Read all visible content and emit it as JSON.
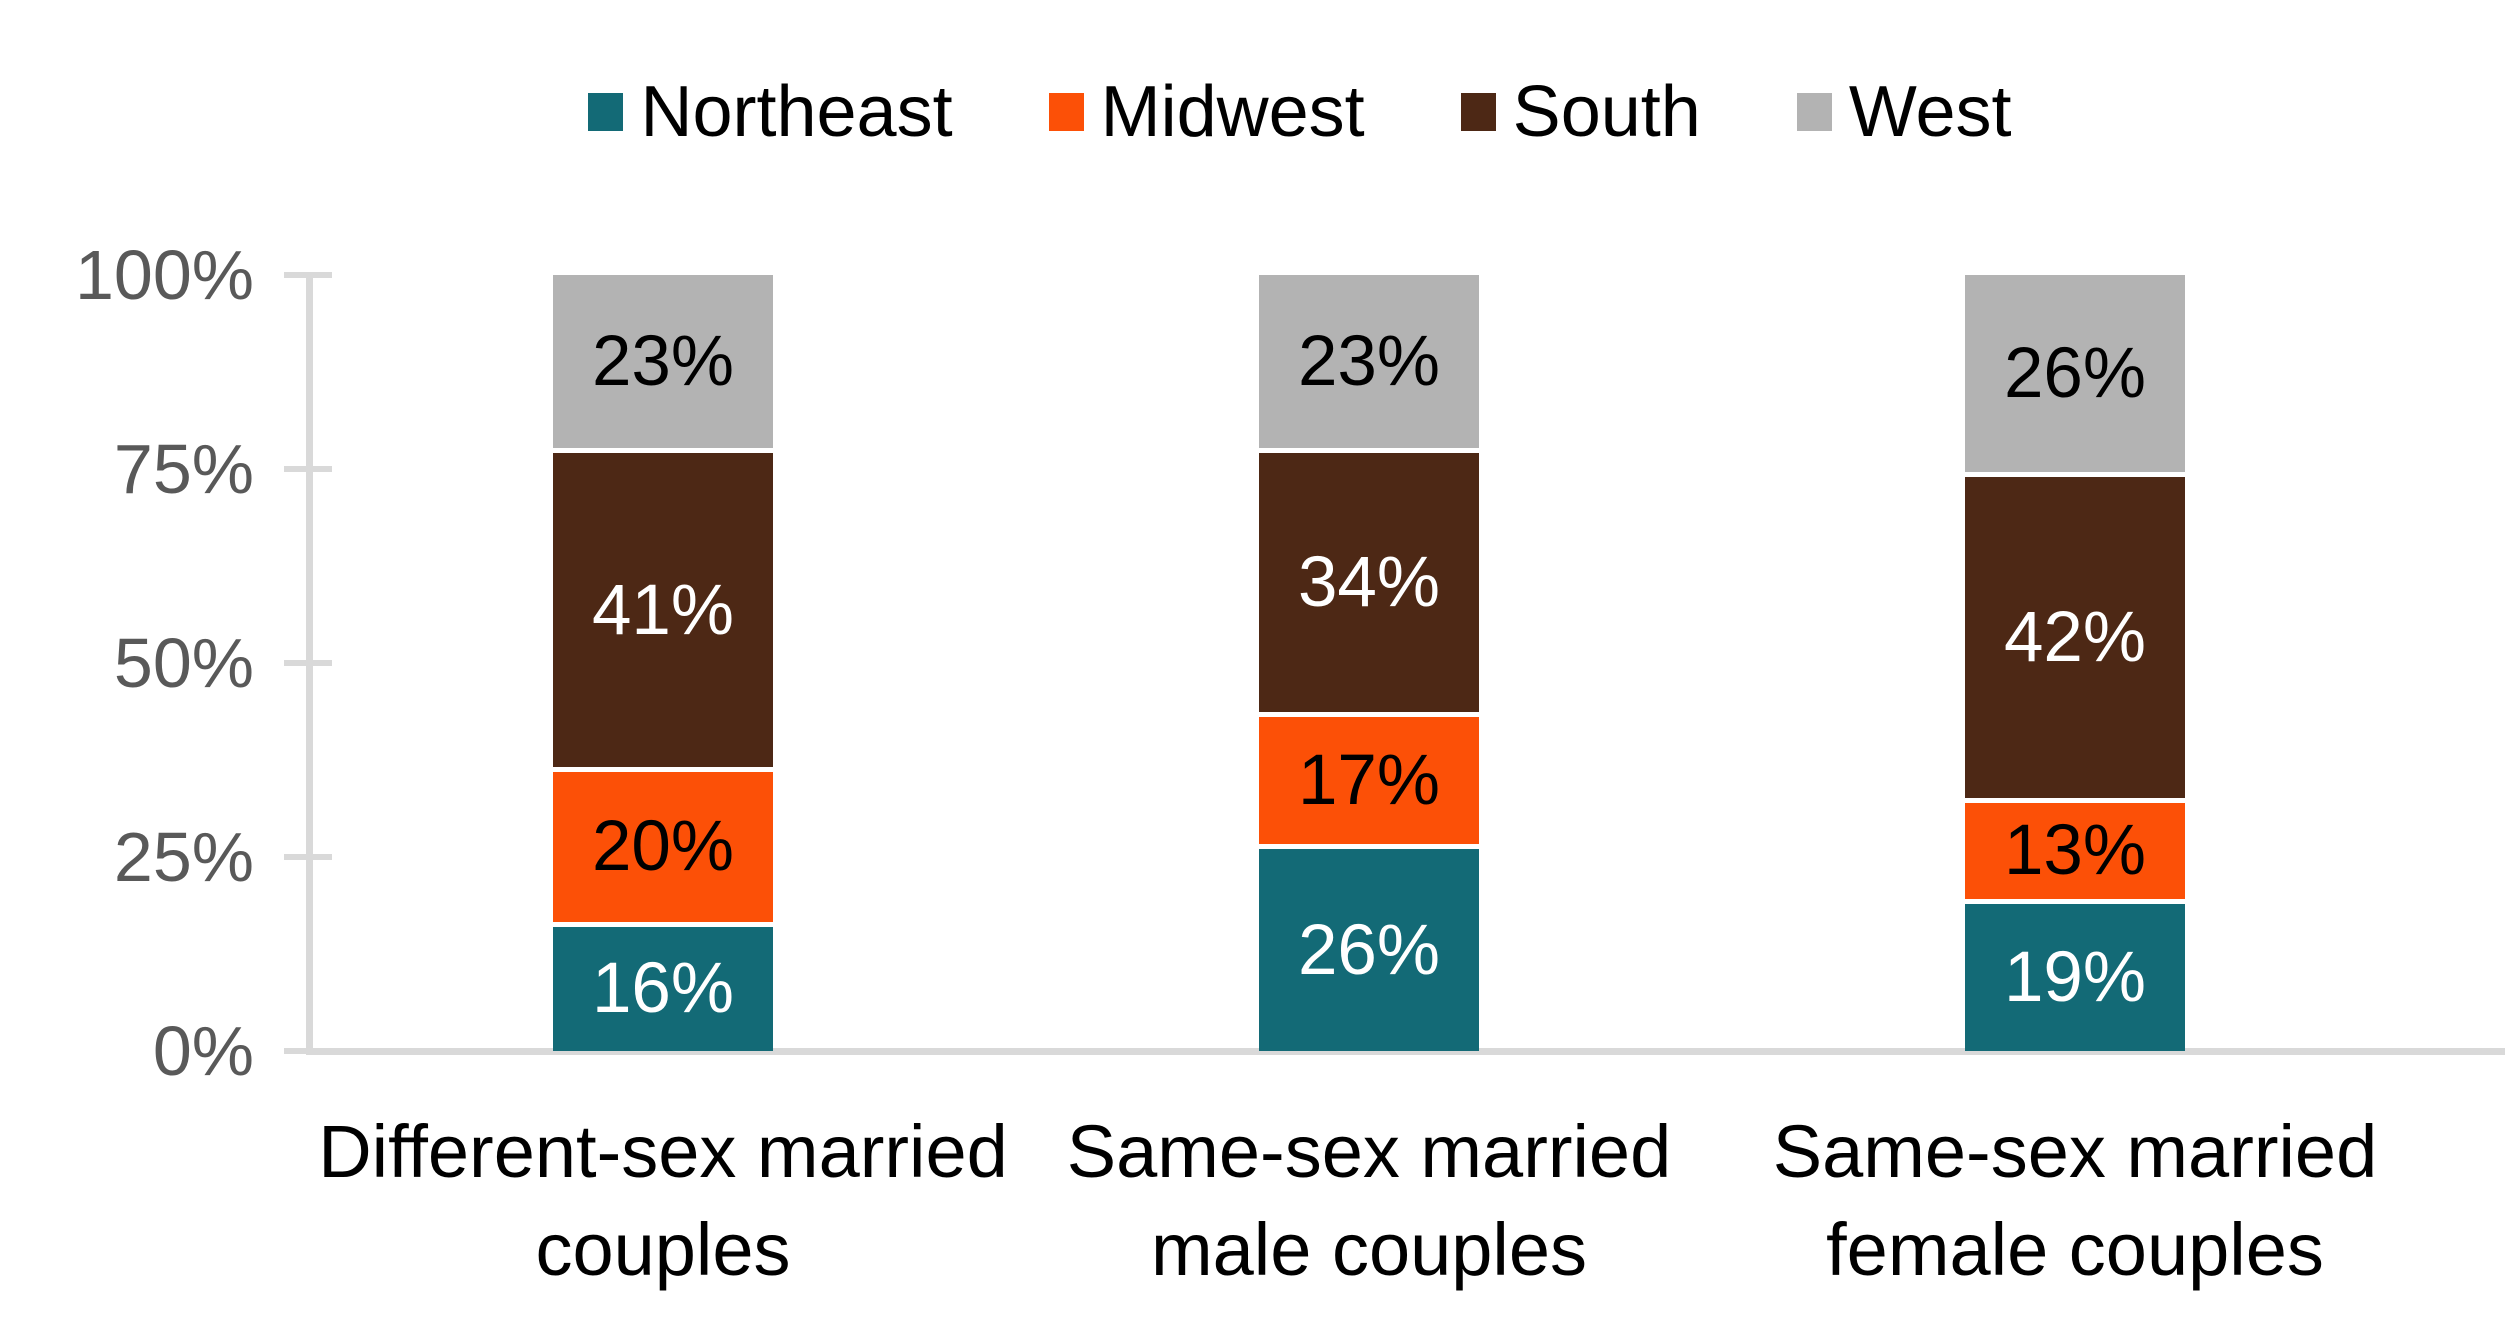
{
  "chart_data": {
    "type": "bar",
    "stacked": true,
    "unit": "%",
    "title": "",
    "categories": [
      "Different-sex married\ncouples",
      "Same-sex married\nmale couples",
      "Same-sex married\nfemale couples"
    ],
    "series": [
      {
        "name": "Northeast",
        "color": "#136A76",
        "label_color": "#FFFFFF",
        "values": [
          16,
          26,
          19
        ]
      },
      {
        "name": "Midwest",
        "color": "#FC5007",
        "label_color": "#000000",
        "values": [
          20,
          17,
          13
        ]
      },
      {
        "name": "South",
        "color": "#4D2815",
        "label_color": "#FFFFFF",
        "values": [
          41,
          34,
          42
        ]
      },
      {
        "name": "West",
        "color": "#B3B3B3",
        "label_color": "#000000",
        "values": [
          23,
          23,
          26
        ]
      }
    ],
    "data_labels": [
      [
        "16%",
        "20%",
        "41%",
        "23%"
      ],
      [
        "26%",
        "17%",
        "34%",
        "23%"
      ],
      [
        "19%",
        "13%",
        "42%",
        "26%"
      ]
    ],
    "y_axis": {
      "min": 0,
      "max": 100,
      "tick_step": 25,
      "tick_labels": [
        "100%",
        "75%",
        "50%",
        "25%",
        "0%"
      ],
      "tick_label_color": "#595959",
      "axis_color": "#D9D9D9"
    },
    "legend_position": "top",
    "grid": false,
    "background": "#FFFFFF"
  }
}
